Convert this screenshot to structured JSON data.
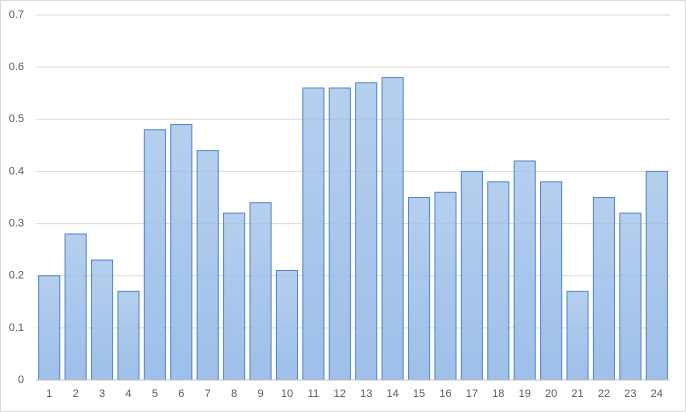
{
  "chart_data": {
    "type": "bar",
    "categories": [
      "1",
      "2",
      "3",
      "4",
      "5",
      "6",
      "7",
      "8",
      "9",
      "10",
      "11",
      "12",
      "13",
      "14",
      "15",
      "16",
      "17",
      "18",
      "19",
      "20",
      "21",
      "22",
      "23",
      "24"
    ],
    "values": [
      0.2,
      0.28,
      0.23,
      0.17,
      0.48,
      0.49,
      0.44,
      0.32,
      0.34,
      0.21,
      0.56,
      0.56,
      0.57,
      0.58,
      0.35,
      0.36,
      0.4,
      0.38,
      0.42,
      0.38,
      0.17,
      0.35,
      0.32,
      0.4
    ],
    "color": "#9dbfe9",
    "edge_color": "#4f86c6",
    "ylim": [
      0,
      0.7
    ],
    "yticks": [
      0,
      0.1,
      0.2,
      0.3,
      0.4,
      0.5,
      0.6,
      0.7
    ],
    "grid": true
  }
}
